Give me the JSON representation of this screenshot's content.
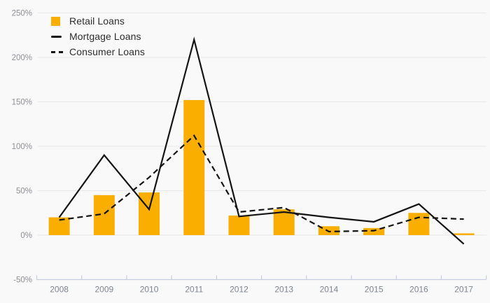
{
  "legend": {
    "items": [
      {
        "label": "Retail Loans",
        "swatch": "bar-square-icon"
      },
      {
        "label": "Mortgage Loans",
        "swatch": "solid-line-icon"
      },
      {
        "label": "Consumer Loans",
        "swatch": "dashed-line-icon"
      }
    ]
  },
  "colors": {
    "bar": "#F9AE00",
    "line": "#141414",
    "background": "#f9f9fa",
    "gridline": "#e7e7e9",
    "axis": "#c6cde0",
    "y_label": "#8f9096",
    "x_label": "#7e8493"
  },
  "chart_data": {
    "type": "bar",
    "subtype": "combo-bar-and-lines",
    "categories": [
      "2008",
      "2009",
      "2010",
      "2011",
      "2012",
      "2013",
      "2014",
      "2015",
      "2016",
      "2017"
    ],
    "series": [
      {
        "name": "Retail Loans",
        "type": "bar",
        "style": "solid",
        "color": "#F9AE00",
        "values": [
          20,
          45,
          48,
          152,
          22,
          29,
          10,
          8,
          25,
          2
        ]
      },
      {
        "name": "Mortgage Loans",
        "type": "line",
        "style": "solid",
        "color": "#141414",
        "values": [
          20,
          90,
          29,
          220,
          21,
          26,
          20,
          15,
          35,
          -10
        ]
      },
      {
        "name": "Consumer Loans",
        "type": "line",
        "style": "dashed",
        "color": "#141414",
        "values": [
          17,
          24,
          65,
          112,
          26,
          31,
          4,
          5,
          20,
          18
        ]
      }
    ],
    "title": "",
    "xlabel": "",
    "ylabel": "",
    "y_axis": {
      "min": -50,
      "max": 250,
      "step": 50,
      "unit": "%",
      "tick_labels": [
        "250%",
        "200%",
        "150%",
        "100%",
        "50%",
        "0%",
        "-50%"
      ]
    },
    "grid": true,
    "legend_position": "top-left"
  }
}
